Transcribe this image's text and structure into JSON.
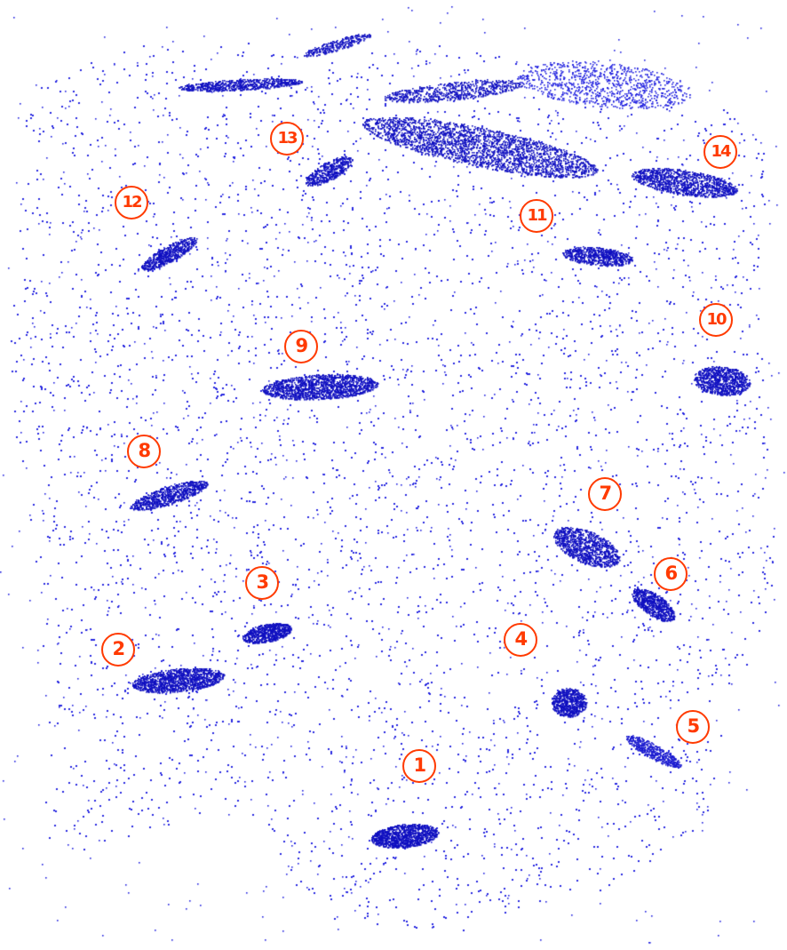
{
  "image": {
    "subject": "point-cloud",
    "point_color": "#1a1ad6",
    "dense_color": "#0f0fc0",
    "marker_color": "#ff3a00"
  },
  "markers": [
    {
      "label": "1",
      "name": "marker-1"
    },
    {
      "label": "2",
      "name": "marker-2"
    },
    {
      "label": "3",
      "name": "marker-3"
    },
    {
      "label": "4",
      "name": "marker-4"
    },
    {
      "label": "5",
      "name": "marker-5"
    },
    {
      "label": "6",
      "name": "marker-6"
    },
    {
      "label": "7",
      "name": "marker-7"
    },
    {
      "label": "8",
      "name": "marker-8"
    },
    {
      "label": "9",
      "name": "marker-9"
    },
    {
      "label": "10",
      "name": "marker-10"
    },
    {
      "label": "11",
      "name": "marker-11"
    },
    {
      "label": "12",
      "name": "marker-12"
    },
    {
      "label": "13",
      "name": "marker-13"
    },
    {
      "label": "14",
      "name": "marker-14"
    }
  ]
}
